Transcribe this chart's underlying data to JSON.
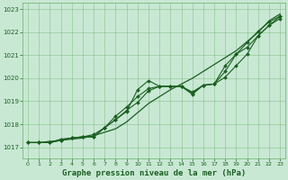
{
  "title": "Graphe pression niveau de la mer (hPa)",
  "bg_color": "#c8e8d4",
  "plot_bg_color": "#c8e8d4",
  "grid_color": "#7ab87a",
  "line_color": "#1a6020",
  "marker_color": "#1a6020",
  "xlim": [
    -0.5,
    23.5
  ],
  "ylim": [
    1016.5,
    1023.3
  ],
  "ytick_labels": [
    "1017",
    "1018",
    "1019",
    "1020",
    "1021",
    "1022",
    "1023"
  ],
  "yticks": [
    1017,
    1018,
    1019,
    1020,
    1021,
    1022,
    1023
  ],
  "xticks": [
    0,
    1,
    2,
    3,
    4,
    5,
    6,
    7,
    8,
    9,
    10,
    11,
    12,
    13,
    14,
    15,
    16,
    17,
    18,
    19,
    20,
    21,
    22,
    23
  ],
  "series1_straight": [
    1017.2,
    1017.2,
    1017.25,
    1017.3,
    1017.35,
    1017.4,
    1017.5,
    1017.65,
    1017.8,
    1018.1,
    1018.5,
    1018.9,
    1019.2,
    1019.5,
    1019.75,
    1020.0,
    1020.3,
    1020.6,
    1020.9,
    1021.2,
    1021.6,
    1022.0,
    1022.5,
    1022.8
  ],
  "series2": [
    1017.2,
    1017.2,
    1017.2,
    1017.35,
    1017.4,
    1017.45,
    1017.55,
    1017.85,
    1018.2,
    1018.55,
    1019.5,
    1019.9,
    1019.65,
    1019.65,
    1019.65,
    1019.4,
    1019.7,
    1019.75,
    1020.55,
    1021.05,
    1021.35,
    1021.85,
    1022.3,
    1022.6
  ],
  "series3": [
    1017.2,
    1017.2,
    1017.2,
    1017.3,
    1017.4,
    1017.45,
    1017.45,
    1017.85,
    1018.2,
    1018.6,
    1018.95,
    1019.45,
    1019.65,
    1019.65,
    1019.65,
    1019.3,
    1019.7,
    1019.75,
    1020.05,
    1020.55,
    1021.05,
    1021.85,
    1022.3,
    1022.7
  ],
  "series4": [
    1017.2,
    1017.2,
    1017.2,
    1017.3,
    1017.4,
    1017.45,
    1017.45,
    1017.85,
    1018.35,
    1018.75,
    1019.2,
    1019.55,
    1019.65,
    1019.65,
    1019.65,
    1019.35,
    1019.7,
    1019.75,
    1020.3,
    1021.05,
    1021.55,
    1022.05,
    1022.45,
    1022.7
  ]
}
